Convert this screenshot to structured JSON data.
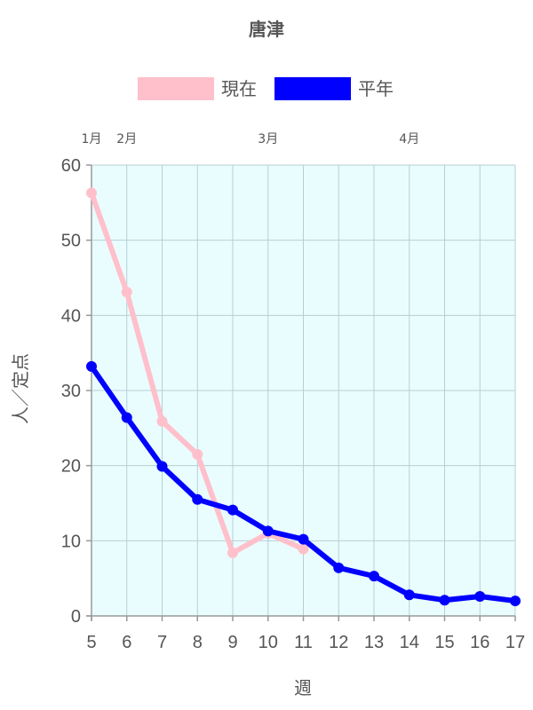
{
  "chart_data": {
    "type": "line",
    "title": "唐津",
    "xlabel": "週",
    "ylabel": "人／定点",
    "x": [
      5,
      6,
      7,
      8,
      9,
      10,
      11,
      12,
      13,
      14,
      15,
      16,
      17
    ],
    "xlim": [
      5,
      17
    ],
    "ylim": [
      0,
      60
    ],
    "yticks": [
      0,
      10,
      20,
      30,
      40,
      50,
      60
    ],
    "grid": true,
    "legend_position": "top",
    "plot_background": "#e9fdff",
    "month_labels": [
      {
        "label": "1月",
        "week": 5
      },
      {
        "label": "2月",
        "week": 6
      },
      {
        "label": "3月",
        "week": 10
      },
      {
        "label": "4月",
        "week": 14
      }
    ],
    "series": [
      {
        "name": "現在",
        "color": "#ffc0cb",
        "values": [
          56.3,
          43.1,
          25.9,
          21.5,
          8.4,
          11.0,
          8.9,
          null,
          null,
          null,
          null,
          null,
          null
        ]
      },
      {
        "name": "平年",
        "color": "#0000ff",
        "values": [
          33.2,
          26.4,
          19.9,
          15.5,
          14.1,
          11.3,
          10.2,
          6.4,
          5.3,
          2.8,
          2.1,
          2.6,
          2.0
        ]
      }
    ]
  }
}
